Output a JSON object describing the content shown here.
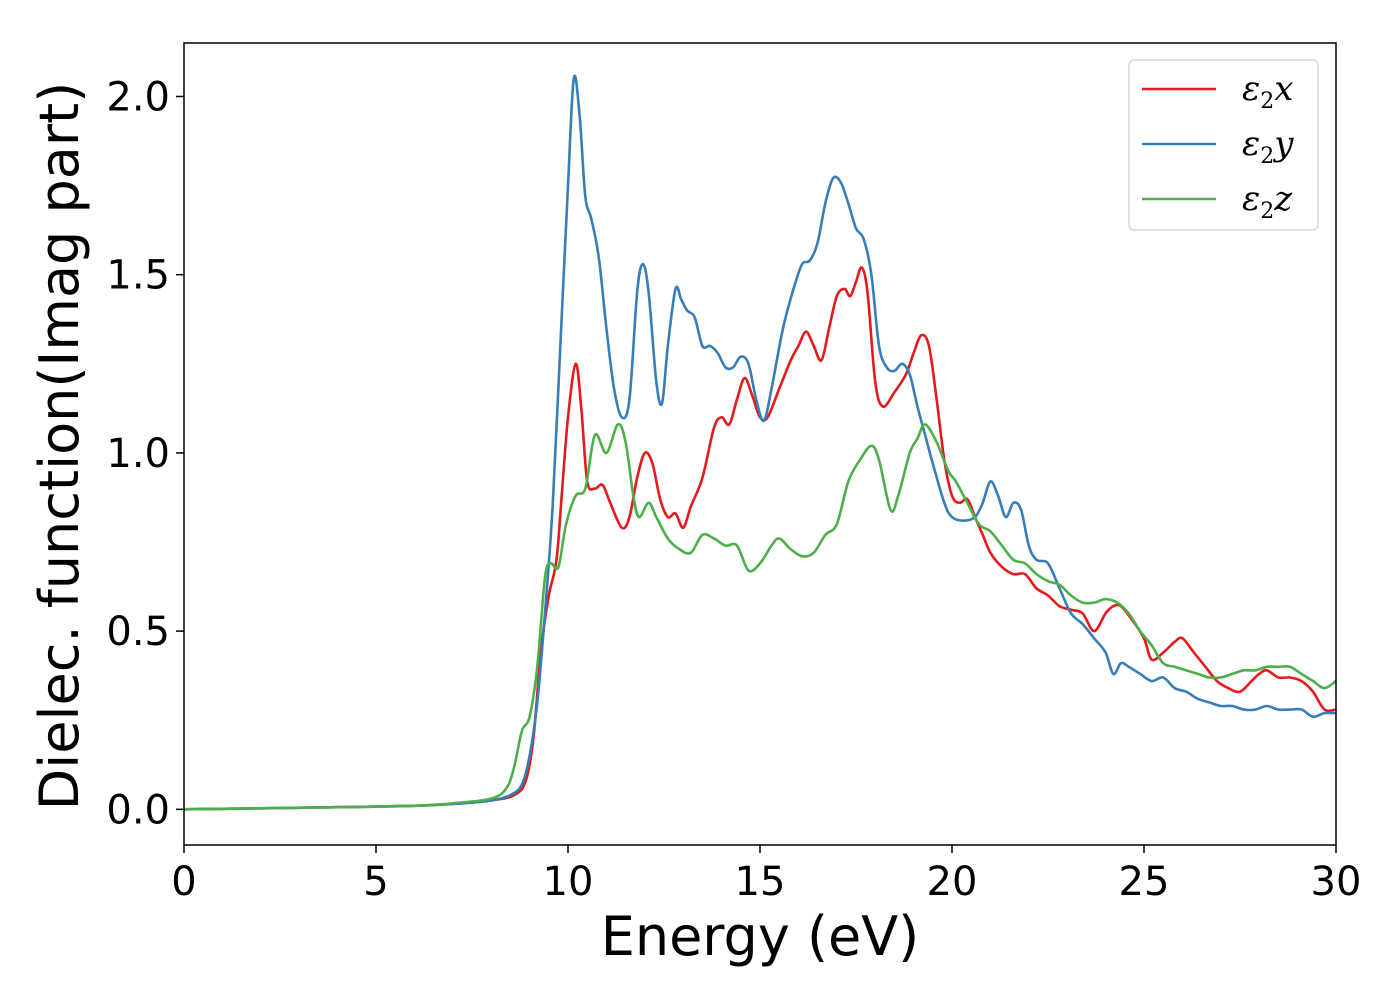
{
  "chart_data": {
    "type": "line",
    "title": "",
    "xlabel": "Energy (eV)",
    "ylabel": "Dielec. function(Imag part)",
    "xlim": [
      0,
      30
    ],
    "ylim": [
      -0.1,
      2.15
    ],
    "xticks": [
      "0",
      "5",
      "10",
      "15",
      "20",
      "25",
      "30"
    ],
    "yticks": [
      "0.0",
      "0.5",
      "1.0",
      "1.5",
      "2.0"
    ],
    "grid": false,
    "legend_position": "top-right",
    "series": [
      {
        "name": "ε2x",
        "legend": {
          "base": "ε",
          "sub": "2",
          "tail": "x"
        },
        "color": "#e41a1c",
        "points": [
          [
            0,
            0
          ],
          [
            2,
            0.003
          ],
          [
            4,
            0.006
          ],
          [
            6,
            0.01
          ],
          [
            7,
            0.015
          ],
          [
            8,
            0.025
          ],
          [
            8.6,
            0.04
          ],
          [
            8.9,
            0.08
          ],
          [
            9.1,
            0.2
          ],
          [
            9.3,
            0.45
          ],
          [
            9.5,
            0.6
          ],
          [
            9.7,
            0.7
          ],
          [
            9.85,
            0.9
          ],
          [
            10.0,
            1.1
          ],
          [
            10.2,
            1.25
          ],
          [
            10.35,
            1.12
          ],
          [
            10.5,
            0.92
          ],
          [
            10.7,
            0.9
          ],
          [
            10.9,
            0.91
          ],
          [
            11.1,
            0.86
          ],
          [
            11.4,
            0.79
          ],
          [
            11.6,
            0.82
          ],
          [
            11.8,
            0.93
          ],
          [
            12.0,
            1.0
          ],
          [
            12.2,
            0.97
          ],
          [
            12.4,
            0.87
          ],
          [
            12.6,
            0.82
          ],
          [
            12.8,
            0.83
          ],
          [
            13.0,
            0.79
          ],
          [
            13.2,
            0.85
          ],
          [
            13.5,
            0.93
          ],
          [
            13.8,
            1.07
          ],
          [
            14.0,
            1.1
          ],
          [
            14.2,
            1.08
          ],
          [
            14.4,
            1.15
          ],
          [
            14.6,
            1.21
          ],
          [
            14.8,
            1.16
          ],
          [
            15.0,
            1.1
          ],
          [
            15.2,
            1.1
          ],
          [
            15.5,
            1.18
          ],
          [
            15.8,
            1.26
          ],
          [
            16.0,
            1.3
          ],
          [
            16.2,
            1.34
          ],
          [
            16.4,
            1.3
          ],
          [
            16.6,
            1.26
          ],
          [
            16.8,
            1.35
          ],
          [
            17.0,
            1.44
          ],
          [
            17.2,
            1.46
          ],
          [
            17.35,
            1.44
          ],
          [
            17.5,
            1.48
          ],
          [
            17.65,
            1.52
          ],
          [
            17.8,
            1.45
          ],
          [
            18.0,
            1.2
          ],
          [
            18.2,
            1.13
          ],
          [
            18.5,
            1.17
          ],
          [
            18.8,
            1.22
          ],
          [
            19.0,
            1.28
          ],
          [
            19.2,
            1.33
          ],
          [
            19.4,
            1.3
          ],
          [
            19.6,
            1.15
          ],
          [
            19.8,
            0.98
          ],
          [
            20.0,
            0.88
          ],
          [
            20.2,
            0.86
          ],
          [
            20.4,
            0.87
          ],
          [
            20.6,
            0.82
          ],
          [
            20.8,
            0.77
          ],
          [
            21.0,
            0.72
          ],
          [
            21.3,
            0.68
          ],
          [
            21.6,
            0.66
          ],
          [
            21.9,
            0.66
          ],
          [
            22.2,
            0.62
          ],
          [
            22.5,
            0.6
          ],
          [
            22.8,
            0.57
          ],
          [
            23.1,
            0.56
          ],
          [
            23.4,
            0.55
          ],
          [
            23.7,
            0.5
          ],
          [
            24.0,
            0.55
          ],
          [
            24.2,
            0.57
          ],
          [
            24.4,
            0.57
          ],
          [
            24.7,
            0.53
          ],
          [
            25.0,
            0.48
          ],
          [
            25.2,
            0.42
          ],
          [
            25.5,
            0.44
          ],
          [
            25.8,
            0.47
          ],
          [
            26.0,
            0.48
          ],
          [
            26.3,
            0.44
          ],
          [
            26.6,
            0.4
          ],
          [
            26.9,
            0.36
          ],
          [
            27.2,
            0.34
          ],
          [
            27.5,
            0.33
          ],
          [
            27.8,
            0.36
          ],
          [
            28.0,
            0.38
          ],
          [
            28.2,
            0.39
          ],
          [
            28.5,
            0.37
          ],
          [
            28.8,
            0.37
          ],
          [
            29.1,
            0.36
          ],
          [
            29.4,
            0.33
          ],
          [
            29.7,
            0.28
          ],
          [
            30.0,
            0.28
          ]
        ]
      },
      {
        "name": "ε2y",
        "legend": {
          "base": "ε",
          "sub": "2",
          "tail": "y"
        },
        "color": "#377eb8",
        "points": [
          [
            0,
            0
          ],
          [
            2,
            0.003
          ],
          [
            4,
            0.006
          ],
          [
            6,
            0.01
          ],
          [
            7,
            0.015
          ],
          [
            8,
            0.025
          ],
          [
            8.5,
            0.04
          ],
          [
            8.8,
            0.07
          ],
          [
            9.0,
            0.15
          ],
          [
            9.2,
            0.3
          ],
          [
            9.4,
            0.55
          ],
          [
            9.6,
            0.85
          ],
          [
            9.8,
            1.3
          ],
          [
            10.0,
            1.75
          ],
          [
            10.15,
            2.05
          ],
          [
            10.3,
            1.95
          ],
          [
            10.45,
            1.72
          ],
          [
            10.6,
            1.66
          ],
          [
            10.8,
            1.55
          ],
          [
            11.0,
            1.35
          ],
          [
            11.2,
            1.18
          ],
          [
            11.4,
            1.1
          ],
          [
            11.6,
            1.15
          ],
          [
            11.8,
            1.45
          ],
          [
            11.95,
            1.53
          ],
          [
            12.1,
            1.45
          ],
          [
            12.3,
            1.2
          ],
          [
            12.45,
            1.14
          ],
          [
            12.6,
            1.3
          ],
          [
            12.8,
            1.46
          ],
          [
            12.95,
            1.43
          ],
          [
            13.1,
            1.4
          ],
          [
            13.3,
            1.38
          ],
          [
            13.5,
            1.3
          ],
          [
            13.7,
            1.3
          ],
          [
            13.9,
            1.28
          ],
          [
            14.1,
            1.24
          ],
          [
            14.3,
            1.24
          ],
          [
            14.5,
            1.27
          ],
          [
            14.7,
            1.25
          ],
          [
            14.9,
            1.15
          ],
          [
            15.1,
            1.09
          ],
          [
            15.3,
            1.18
          ],
          [
            15.6,
            1.35
          ],
          [
            15.9,
            1.47
          ],
          [
            16.1,
            1.53
          ],
          [
            16.3,
            1.54
          ],
          [
            16.5,
            1.59
          ],
          [
            16.7,
            1.7
          ],
          [
            16.9,
            1.77
          ],
          [
            17.1,
            1.76
          ],
          [
            17.3,
            1.7
          ],
          [
            17.5,
            1.63
          ],
          [
            17.7,
            1.6
          ],
          [
            17.9,
            1.5
          ],
          [
            18.1,
            1.3
          ],
          [
            18.3,
            1.24
          ],
          [
            18.5,
            1.23
          ],
          [
            18.7,
            1.25
          ],
          [
            18.9,
            1.22
          ],
          [
            19.1,
            1.13
          ],
          [
            19.3,
            1.05
          ],
          [
            19.5,
            0.97
          ],
          [
            19.8,
            0.86
          ],
          [
            20.0,
            0.82
          ],
          [
            20.3,
            0.81
          ],
          [
            20.6,
            0.82
          ],
          [
            20.8,
            0.86
          ],
          [
            21.0,
            0.92
          ],
          [
            21.2,
            0.88
          ],
          [
            21.4,
            0.82
          ],
          [
            21.6,
            0.86
          ],
          [
            21.8,
            0.84
          ],
          [
            22.0,
            0.74
          ],
          [
            22.2,
            0.7
          ],
          [
            22.5,
            0.69
          ],
          [
            22.8,
            0.62
          ],
          [
            23.1,
            0.55
          ],
          [
            23.4,
            0.52
          ],
          [
            23.7,
            0.48
          ],
          [
            24.0,
            0.44
          ],
          [
            24.2,
            0.38
          ],
          [
            24.4,
            0.41
          ],
          [
            24.6,
            0.4
          ],
          [
            24.9,
            0.38
          ],
          [
            25.2,
            0.36
          ],
          [
            25.5,
            0.37
          ],
          [
            25.8,
            0.34
          ],
          [
            26.1,
            0.33
          ],
          [
            26.4,
            0.31
          ],
          [
            26.7,
            0.3
          ],
          [
            27.0,
            0.29
          ],
          [
            27.3,
            0.29
          ],
          [
            27.6,
            0.28
          ],
          [
            27.9,
            0.28
          ],
          [
            28.2,
            0.29
          ],
          [
            28.5,
            0.28
          ],
          [
            28.8,
            0.28
          ],
          [
            29.1,
            0.28
          ],
          [
            29.4,
            0.26
          ],
          [
            29.7,
            0.27
          ],
          [
            30.0,
            0.27
          ]
        ]
      },
      {
        "name": "ε2z",
        "legend": {
          "base": "ε",
          "sub": "2",
          "tail": "z"
        },
        "color": "#4daf4a",
        "points": [
          [
            0,
            0
          ],
          [
            2,
            0.003
          ],
          [
            4,
            0.006
          ],
          [
            6,
            0.01
          ],
          [
            7,
            0.017
          ],
          [
            8,
            0.03
          ],
          [
            8.4,
            0.06
          ],
          [
            8.6,
            0.12
          ],
          [
            8.8,
            0.22
          ],
          [
            9.0,
            0.26
          ],
          [
            9.2,
            0.4
          ],
          [
            9.4,
            0.65
          ],
          [
            9.55,
            0.69
          ],
          [
            9.75,
            0.68
          ],
          [
            9.95,
            0.8
          ],
          [
            10.2,
            0.88
          ],
          [
            10.45,
            0.9
          ],
          [
            10.7,
            1.05
          ],
          [
            11.0,
            1.0
          ],
          [
            11.3,
            1.08
          ],
          [
            11.5,
            1.03
          ],
          [
            11.7,
            0.88
          ],
          [
            11.85,
            0.82
          ],
          [
            12.1,
            0.86
          ],
          [
            12.3,
            0.82
          ],
          [
            12.6,
            0.76
          ],
          [
            12.9,
            0.73
          ],
          [
            13.2,
            0.72
          ],
          [
            13.5,
            0.77
          ],
          [
            13.8,
            0.76
          ],
          [
            14.1,
            0.74
          ],
          [
            14.4,
            0.74
          ],
          [
            14.7,
            0.67
          ],
          [
            15.0,
            0.69
          ],
          [
            15.3,
            0.74
          ],
          [
            15.5,
            0.76
          ],
          [
            15.8,
            0.73
          ],
          [
            16.1,
            0.71
          ],
          [
            16.4,
            0.72
          ],
          [
            16.7,
            0.77
          ],
          [
            17.0,
            0.8
          ],
          [
            17.3,
            0.92
          ],
          [
            17.6,
            0.98
          ],
          [
            17.9,
            1.02
          ],
          [
            18.1,
            0.98
          ],
          [
            18.4,
            0.84
          ],
          [
            18.6,
            0.88
          ],
          [
            18.9,
            1.0
          ],
          [
            19.1,
            1.04
          ],
          [
            19.3,
            1.08
          ],
          [
            19.6,
            1.03
          ],
          [
            19.9,
            0.95
          ],
          [
            20.1,
            0.92
          ],
          [
            20.4,
            0.86
          ],
          [
            20.7,
            0.8
          ],
          [
            21.0,
            0.78
          ],
          [
            21.3,
            0.74
          ],
          [
            21.6,
            0.7
          ],
          [
            21.9,
            0.69
          ],
          [
            22.2,
            0.66
          ],
          [
            22.5,
            0.64
          ],
          [
            22.8,
            0.63
          ],
          [
            23.1,
            0.6
          ],
          [
            23.4,
            0.58
          ],
          [
            23.7,
            0.58
          ],
          [
            24.0,
            0.59
          ],
          [
            24.3,
            0.58
          ],
          [
            24.6,
            0.55
          ],
          [
            24.9,
            0.5
          ],
          [
            25.2,
            0.46
          ],
          [
            25.5,
            0.41
          ],
          [
            25.8,
            0.4
          ],
          [
            26.1,
            0.39
          ],
          [
            26.4,
            0.38
          ],
          [
            26.7,
            0.37
          ],
          [
            27.0,
            0.37
          ],
          [
            27.3,
            0.38
          ],
          [
            27.6,
            0.39
          ],
          [
            27.9,
            0.39
          ],
          [
            28.2,
            0.4
          ],
          [
            28.5,
            0.4
          ],
          [
            28.8,
            0.4
          ],
          [
            29.1,
            0.38
          ],
          [
            29.4,
            0.36
          ],
          [
            29.7,
            0.34
          ],
          [
            30.0,
            0.36
          ]
        ]
      }
    ]
  }
}
